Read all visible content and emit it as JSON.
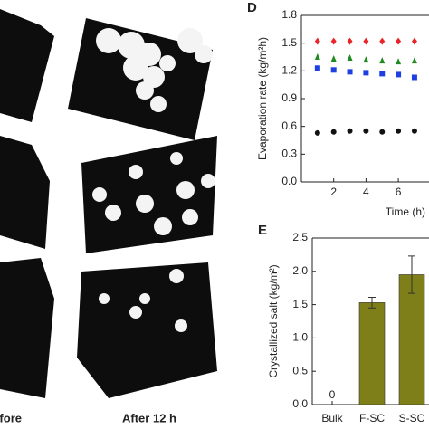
{
  "figure": {
    "photo_labels": [
      "Before",
      "After 12 h"
    ]
  },
  "chart_data": [
    {
      "type": "scatter",
      "panel": "D",
      "xlabel": "Time (h)",
      "ylabel": "Evaporation rate (kg/m²h)",
      "x": [
        1,
        2,
        3,
        4,
        5,
        6,
        7
      ],
      "series": [
        {
          "color": "#e8262a",
          "marker": "diamond",
          "values": [
            1.52,
            1.52,
            1.52,
            1.52,
            1.52,
            1.52,
            1.52
          ]
        },
        {
          "color": "#1f8a1f",
          "marker": "triangle",
          "values": [
            1.35,
            1.33,
            1.34,
            1.32,
            1.31,
            1.3,
            1.31
          ]
        },
        {
          "color": "#1f3fe0",
          "marker": "square",
          "values": [
            1.23,
            1.21,
            1.19,
            1.18,
            1.17,
            1.16,
            1.13
          ]
        },
        {
          "color": "#111111",
          "marker": "circle",
          "values": [
            0.53,
            0.54,
            0.55,
            0.55,
            0.54,
            0.55,
            0.55
          ]
        }
      ],
      "xlim": [
        0,
        7.9
      ],
      "xticks": [
        2,
        4,
        6
      ],
      "ylim": [
        0,
        1.8
      ],
      "yticks": [
        {
          "value": 0,
          "label": "0.0"
        },
        0.3,
        0.6,
        0.9,
        1.2,
        1.5,
        1.8
      ]
    },
    {
      "type": "bar",
      "panel": "E",
      "ylabel": "Crystallized salt (kg/m²)",
      "categories": [
        "Bulk",
        "F-SC",
        "S-SC"
      ],
      "values": [
        0,
        1.53,
        1.95
      ],
      "errors": [
        0,
        0.08,
        0.28
      ],
      "value_labels": [
        "0",
        null,
        null
      ],
      "color": "#7f7f1a",
      "ylim": [
        0,
        2.5
      ],
      "yticks": [
        {
          "value": 0,
          "label": "0.0"
        },
        0.5,
        {
          "value": 1,
          "label": "1.0"
        },
        1.5,
        {
          "value": 2,
          "label": "2.0"
        },
        2.5
      ]
    }
  ]
}
